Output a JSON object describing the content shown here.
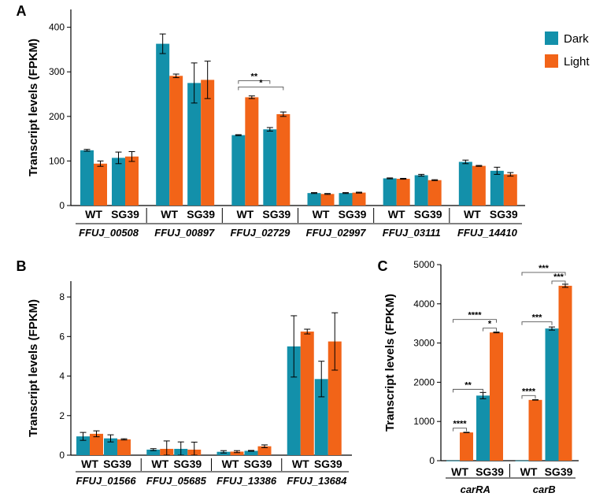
{
  "colors": {
    "dark": "#1390aa",
    "light": "#f26418"
  },
  "legend": [
    {
      "name": "Dark",
      "color": "#1390aa"
    },
    {
      "name": "Light",
      "color": "#f26418"
    }
  ],
  "chart_data": [
    {
      "panel": "A",
      "type": "bar",
      "ylabel": "Transcript levels (FPKM)",
      "ylim": [
        0,
        440
      ],
      "yticks": [
        0,
        100,
        200,
        300,
        400
      ],
      "conditions": [
        "WT",
        "SG39"
      ],
      "groups": [
        "FFUJ_00508",
        "FFUJ_00897",
        "FFUJ_02729",
        "FFUJ_02997",
        "FFUJ_03111",
        "FFUJ_14410"
      ],
      "series": [
        {
          "name": "Dark",
          "values": [
            [
              124,
              107
            ],
            [
              363,
              275
            ],
            [
              158,
              171
            ],
            [
              28,
              28
            ],
            [
              61,
              68
            ],
            [
              98,
              78
            ]
          ],
          "errors": [
            [
              2,
              13
            ],
            [
              22,
              45
            ],
            [
              1,
              4
            ],
            [
              1,
              1
            ],
            [
              1,
              2
            ],
            [
              4,
              8
            ]
          ]
        },
        {
          "name": "Light",
          "values": [
            [
              94,
              110
            ],
            [
              291,
              282
            ],
            [
              243,
              205
            ],
            [
              26,
              29
            ],
            [
              60,
              57
            ],
            [
              89,
              70
            ]
          ],
          "errors": [
            [
              6,
              11
            ],
            [
              4,
              42
            ],
            [
              3,
              5
            ],
            [
              1,
              1
            ],
            [
              1,
              1
            ],
            [
              1,
              4
            ]
          ]
        }
      ],
      "annotations": [
        {
          "label": "**",
          "group": 2,
          "from": [
            0,
            0
          ],
          "to": [
            1,
            0
          ],
          "y": 280
        },
        {
          "label": "*",
          "group": 2,
          "from": [
            0,
            0
          ],
          "to": [
            1,
            1
          ],
          "y": 266
        }
      ]
    },
    {
      "panel": "B",
      "type": "bar",
      "ylabel": "Transcript levels (FPKM)",
      "ylim": [
        0,
        8.8
      ],
      "yticks": [
        0,
        2,
        4,
        6,
        8
      ],
      "conditions": [
        "WT",
        "SG39"
      ],
      "groups": [
        "FFUJ_01566",
        "FFUJ_05685",
        "FFUJ_13386",
        "FFUJ_13684"
      ],
      "series": [
        {
          "name": "Dark",
          "values": [
            [
              0.95,
              0.85
            ],
            [
              0.28,
              0.32
            ],
            [
              0.17,
              0.22
            ],
            [
              5.5,
              3.85
            ]
          ],
          "errors": [
            [
              0.2,
              0.18
            ],
            [
              0.05,
              0.35
            ],
            [
              0.06,
              0.02
            ],
            [
              1.55,
              0.9
            ]
          ]
        },
        {
          "name": "Light",
          "values": [
            [
              1.08,
              0.8
            ],
            [
              0.32,
              0.28
            ],
            [
              0.18,
              0.45
            ],
            [
              6.25,
              5.75
            ]
          ],
          "errors": [
            [
              0.15,
              0.03
            ],
            [
              0.4,
              0.38
            ],
            [
              0.05,
              0.07
            ],
            [
              0.12,
              1.45
            ]
          ]
        }
      ],
      "annotations": []
    },
    {
      "panel": "C",
      "type": "bar",
      "ylabel": "Transcript levels (FPKM)",
      "ylim": [
        0,
        5000
      ],
      "yticks": [
        0,
        1000,
        2000,
        3000,
        4000,
        5000
      ],
      "conditions": [
        "WT",
        "SG39"
      ],
      "groups": [
        "carRA",
        "carB"
      ],
      "series": [
        {
          "name": "Dark",
          "values": [
            [
              5,
              1660
            ],
            [
              5,
              3370
            ]
          ],
          "errors": [
            [
              0,
              80
            ],
            [
              0,
              40
            ]
          ]
        },
        {
          "name": "Light",
          "values": [
            [
              720,
              3270
            ],
            [
              1550,
              4460
            ]
          ],
          "errors": [
            [
              5,
              10
            ],
            [
              5,
              40
            ]
          ]
        }
      ],
      "annotations": [
        {
          "label": "****",
          "group": 0,
          "from": [
            0,
            0
          ],
          "to": [
            0,
            1
          ],
          "y": 830
        },
        {
          "label": "**",
          "group": 0,
          "from": [
            0,
            0
          ],
          "to": [
            1,
            0
          ],
          "y": 1820
        },
        {
          "label": "****",
          "group": 0,
          "from": [
            0,
            0
          ],
          "to": [
            1,
            1
          ],
          "y": 3600
        },
        {
          "label": "*",
          "group": 0,
          "from": [
            1,
            0
          ],
          "to": [
            1,
            1
          ],
          "y": 3380
        },
        {
          "label": "****",
          "group": 1,
          "from": [
            0,
            0
          ],
          "to": [
            0,
            1
          ],
          "y": 1660
        },
        {
          "label": "***",
          "group": 1,
          "from": [
            0,
            0
          ],
          "to": [
            1,
            0
          ],
          "y": 3540
        },
        {
          "label": "***",
          "group": 1,
          "from": [
            0,
            0
          ],
          "to": [
            1,
            1
          ],
          "y": 4800
        },
        {
          "label": "***",
          "group": 1,
          "from": [
            1,
            0
          ],
          "to": [
            1,
            1
          ],
          "y": 4580
        }
      ]
    }
  ]
}
